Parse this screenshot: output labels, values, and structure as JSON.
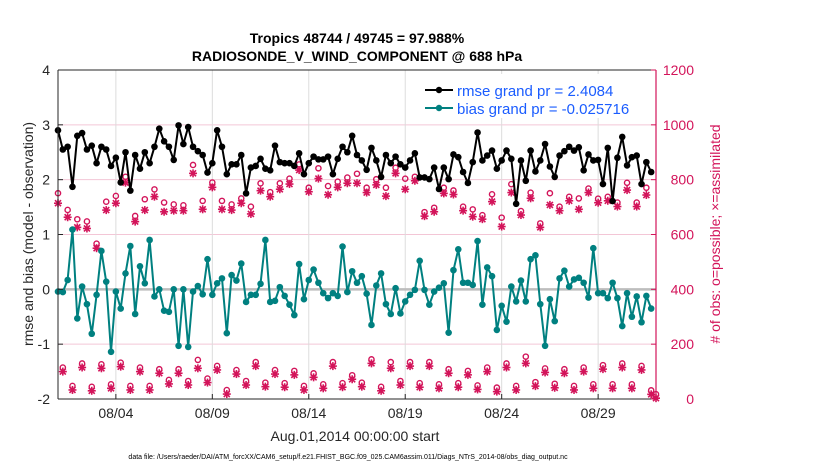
{
  "chart_data": {
    "type": "line",
    "title": "Tropics 48744 / 49745 = 97.988%",
    "subtitle": "RADIOSONDE_V_WIND_COMPONENT @ 688 hPa",
    "xlabel": "Aug.01,2014 00:00:00 start",
    "ylabel": "rmse and bias (model - observation)",
    "ylabel_right": "# of obs: o=possible; ×=assimilated",
    "footer": "data file: /Users/raeder/DAI/ATM_forcXX/CAM6_setup/f.e21.FHIST_BGC.f09_025.CAM6assim.011/Diags_NTrS_2014-08/obs_diag_output.nc",
    "x_unit": "days since Aug.01,2014 00:00:00",
    "x_start_day": 0,
    "x_step_days": 0.25,
    "xlim": [
      0,
      31
    ],
    "ylim": [
      -2,
      4
    ],
    "ylim_right": [
      0,
      1200
    ],
    "x_ticks": [
      {
        "day": 3,
        "label": "08/04"
      },
      {
        "day": 8,
        "label": "08/09"
      },
      {
        "day": 13,
        "label": "08/14"
      },
      {
        "day": 18,
        "label": "08/19"
      },
      {
        "day": 23,
        "label": "08/24"
      },
      {
        "day": 28,
        "label": "08/29"
      }
    ],
    "y_ticks": [
      "-2",
      "-1",
      "0",
      "1",
      "2",
      "3",
      "4"
    ],
    "y_ticks_right": [
      "0",
      "200",
      "400",
      "600",
      "800",
      "1000",
      "1200"
    ],
    "legend_placement": "top-right",
    "grid": true,
    "colors": {
      "rmse": "#000000",
      "bias": "#008080",
      "obs": "#d3145a",
      "legend_text": "#1a5cff",
      "zero_line": "#bdbdbd"
    },
    "series": [
      {
        "name": "rmse grand pr = 2.4084",
        "key": "rmse",
        "values": [
          2.9,
          2.55,
          2.6,
          1.87,
          2.8,
          2.85,
          2.55,
          2.62,
          2.3,
          2.6,
          2.55,
          2.25,
          2.4,
          1.95,
          2.5,
          1.8,
          2.45,
          2.2,
          2.5,
          2.3,
          2.6,
          2.93,
          2.7,
          2.6,
          2.36,
          2.99,
          2.65,
          2.96,
          2.6,
          2.52,
          2.45,
          2.13,
          2.3,
          2.9,
          2.6,
          2.1,
          2.28,
          2.28,
          2.45,
          1.75,
          2.22,
          2.25,
          2.38,
          2.2,
          2.17,
          2.62,
          2.32,
          2.3,
          2.3,
          2.25,
          2.48,
          2.1,
          2.3,
          2.42,
          2.37,
          2.37,
          2.42,
          2.1,
          2.38,
          2.6,
          2.5,
          2.8,
          2.45,
          2.35,
          2.18,
          2.58,
          2.35,
          2.05,
          2.45,
          2.3,
          2.42,
          2.28,
          2.22,
          2.35,
          2.48,
          2.04,
          2.04,
          2.01,
          2.22,
          1.83,
          2.22,
          2.01,
          2.46,
          2.41,
          2.14,
          1.94,
          2.32,
          2.86,
          2.35,
          2.44,
          2.53,
          2.2,
          2.35,
          2.53,
          2.38,
          1.56,
          2.35,
          1.98,
          2.53,
          2.15,
          2.35,
          2.65,
          2.24,
          2.05,
          2.44,
          2.52,
          2.6,
          2.53,
          2.59,
          2.17,
          2.46,
          2.35,
          2.36,
          1.92,
          2.58,
          1.61,
          2.4,
          2.78,
          2.26,
          2.41,
          2.44,
          1.92,
          2.32,
          2.14
        ]
      },
      {
        "name": "bias grand pr = -0.025716",
        "key": "bias",
        "values": [
          -0.04,
          -0.05,
          0.17,
          1.09,
          -0.53,
          0.05,
          -0.27,
          -0.81,
          -0.1,
          0.7,
          0.14,
          -1.14,
          -0.04,
          -0.35,
          0.29,
          0.79,
          -0.45,
          0.42,
          0.11,
          0.9,
          -0.13,
          0,
          -0.39,
          -0.41,
          0,
          -1.03,
          0,
          -1.05,
          -0.04,
          0.06,
          -0.09,
          0.55,
          -0.1,
          0.11,
          0.2,
          -0.8,
          0.26,
          0.16,
          0.47,
          -0.23,
          -0.1,
          -0.1,
          0.1,
          0.9,
          -0.23,
          -0.21,
          0.04,
          -0.12,
          -0.28,
          -0.47,
          0.46,
          -0.18,
          0.17,
          0.36,
          0.12,
          -0.07,
          -0.16,
          -0.07,
          -0.12,
          0.78,
          -0.05,
          0.33,
          0.12,
          0.24,
          -0.08,
          -0.65,
          0.07,
          0.29,
          -0.27,
          -0.45,
          0.02,
          -0.44,
          -0.22,
          -0.1,
          -0.01,
          0.52,
          -0.01,
          -0.28,
          -0.04,
          0.03,
          0.11,
          -0.79,
          0.35,
          0.73,
          0.12,
          0.12,
          0.08,
          0.88,
          -0.28,
          0.4,
          0.24,
          -0.74,
          -0.3,
          -0.59,
          0.05,
          -0.22,
          0.16,
          -0.22,
          0.55,
          0.62,
          -0.27,
          -1.03,
          -0.18,
          -0.58,
          0.2,
          0.34,
          0.05,
          0.18,
          0.21,
          0.12,
          -0.15,
          0.75,
          -0.07,
          -0.07,
          -0.16,
          0.12,
          -0.16,
          -0.67,
          -0.07,
          -0.5,
          -0.13,
          -0.6,
          -0.12,
          -0.35
        ]
      },
      {
        "name": "obs possible",
        "key": "obs_possible",
        "values": [
          736,
          100,
          675,
          33,
          641,
          115,
          633,
          30,
          552,
          112,
          705,
          39,
          726,
          118,
          796,
          33,
          653,
          100,
          714,
          33,
          750,
          94,
          702,
          55,
          695,
          94,
          692,
          51,
          839,
          128,
          708,
          60,
          775,
          106,
          708,
          18,
          695,
          91,
          717,
          51,
          687,
          120,
          772,
          45,
          740,
          91,
          772,
          43,
          789,
          88,
          841,
          33,
          756,
          79,
          827,
          39,
          762,
          120,
          778,
          43,
          793,
          72,
          807,
          45,
          756,
          130,
          787,
          30,
          756,
          120,
          829,
          51,
          789,
          120,
          796,
          43,
          667,
          120,
          683,
          39,
          756,
          94,
          746,
          43,
          687,
          88,
          677,
          35,
          656,
          100,
          732,
          27,
          647,
          115,
          769,
          33,
          671,
          140,
          738,
          47,
          626,
          97,
          736,
          41,
          687,
          94,
          723,
          33,
          717,
          100,
          753,
          39,
          716,
          109,
          723,
          39,
          702,
          115,
          774,
          39,
          702,
          106,
          756,
          17,
          3
        ]
      },
      {
        "name": "obs assimilated",
        "key": "obs_assimilated",
        "values": [
          714,
          100,
          663,
          33,
          626,
          115,
          622,
          30,
          550,
          112,
          689,
          39,
          714,
          118,
          789,
          33,
          647,
          100,
          689,
          33,
          738,
          94,
          683,
          55,
          687,
          94,
          687,
          51,
          823,
          112,
          692,
          60,
          772,
          106,
          692,
          18,
          689,
          91,
          714,
          51,
          675,
          120,
          760,
          45,
          738,
          91,
          765,
          43,
          784,
          88,
          835,
          33,
          756,
          79,
          804,
          39,
          745,
          120,
          772,
          43,
          787,
          72,
          787,
          45,
          753,
          130,
          781,
          30,
          740,
          112,
          823,
          51,
          765,
          120,
          796,
          43,
          667,
          120,
          683,
          39,
          750,
          94,
          746,
          43,
          687,
          88,
          665,
          35,
          656,
          100,
          720,
          27,
          629,
          115,
          753,
          33,
          671,
          130,
          732,
          47,
          626,
          97,
          708,
          41,
          687,
          94,
          723,
          33,
          692,
          100,
          753,
          39,
          716,
          109,
          723,
          39,
          702,
          115,
          762,
          39,
          702,
          106,
          744,
          17,
          3
        ]
      }
    ]
  }
}
